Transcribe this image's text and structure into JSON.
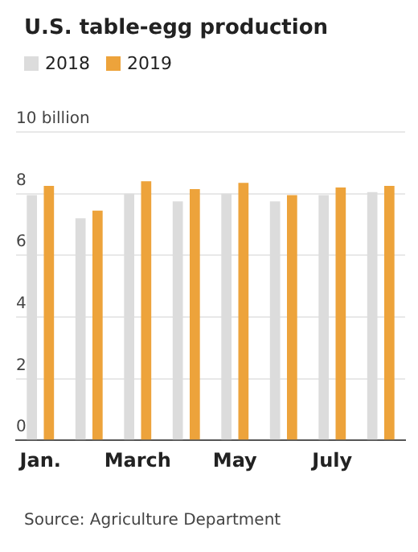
{
  "chart_data": {
    "type": "bar",
    "title": "U.S. table-egg production",
    "categories": [
      "Jan.",
      null,
      "March",
      null,
      "May",
      null,
      "July",
      null
    ],
    "series": [
      {
        "name": "2018",
        "color": "#dcdcdc",
        "values": [
          7.95,
          7.2,
          8.0,
          7.75,
          8.0,
          7.75,
          7.95,
          8.05
        ]
      },
      {
        "name": "2019",
        "color": "#eda33b",
        "values": [
          8.25,
          7.45,
          8.4,
          8.15,
          8.35,
          7.95,
          8.2,
          8.25
        ]
      }
    ],
    "ylim": [
      0,
      10
    ],
    "yticks": [
      0,
      2,
      4,
      6,
      8,
      {
        "value": 10,
        "label": "10 billion"
      }
    ],
    "grid": "y",
    "legend": "top left",
    "annotations": [
      "Source: Agriculture Department"
    ]
  }
}
